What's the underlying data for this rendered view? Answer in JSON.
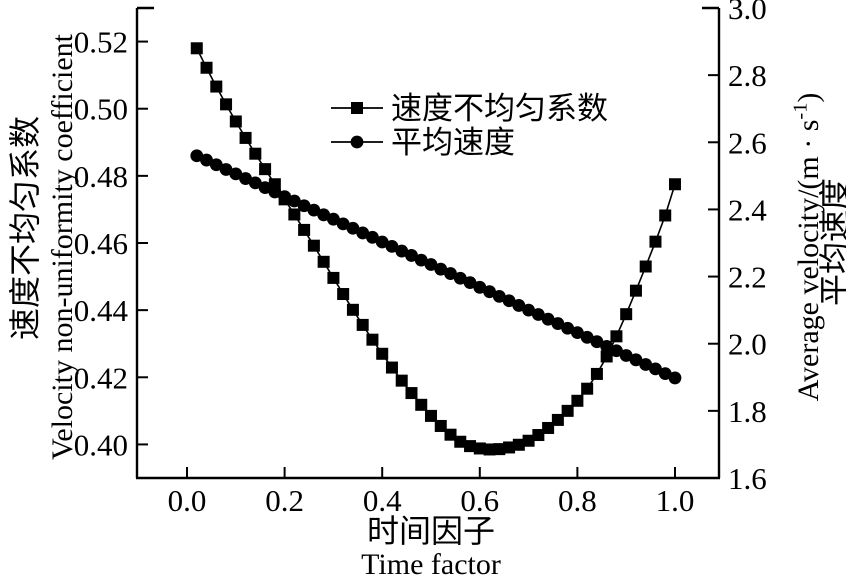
{
  "chart_data": {
    "type": "line",
    "title": "",
    "grid": false,
    "legend_position": "upper-center-inside",
    "colors": {
      "series": "#000000",
      "axis": "#000000",
      "background": "#ffffff"
    },
    "x_axis": {
      "label_zh": "时间因子",
      "label_en": "Time factor",
      "ticks": [
        0.0,
        0.2,
        0.4,
        0.6,
        0.8,
        1.0
      ],
      "tick_labels": [
        "0.0",
        "0.2",
        "0.4",
        "0.6",
        "0.8",
        "1.0"
      ],
      "range": [
        -0.1025,
        1.0902
      ]
    },
    "left_axis": {
      "label_zh": "速度不均匀系数",
      "label_en": "Velocity non-uniformity coefficient",
      "ticks": [
        0.4,
        0.42,
        0.44,
        0.46,
        0.48,
        0.5,
        0.52
      ],
      "tick_labels": [
        "0.40",
        "0.42",
        "0.44",
        "0.46",
        "0.48",
        "0.50",
        "0.52"
      ],
      "range": [
        0.39,
        0.53
      ]
    },
    "right_axis": {
      "label_en": "Average velocity/(m · s⁻¹)",
      "label_zh": "平均速度",
      "ticks": [
        1.6,
        1.8,
        2.0,
        2.2,
        2.4,
        2.6,
        2.8,
        3.0
      ],
      "tick_labels": [
        "1.6",
        "1.8",
        "2.0",
        "2.2",
        "2.4",
        "2.6",
        "2.8",
        "3.0"
      ],
      "range": [
        1.6,
        3.0
      ]
    },
    "legend": {
      "items": [
        {
          "label": "速度不均匀系数",
          "marker": "square"
        },
        {
          "label": "平均速度",
          "marker": "circle"
        }
      ]
    },
    "x": [
      0.02,
      0.04,
      0.06,
      0.08,
      0.1,
      0.12,
      0.14,
      0.16,
      0.18,
      0.2,
      0.22,
      0.24,
      0.26,
      0.28,
      0.3,
      0.32,
      0.34,
      0.36,
      0.38,
      0.4,
      0.42,
      0.44,
      0.46,
      0.48,
      0.5,
      0.52,
      0.54,
      0.56,
      0.58,
      0.6,
      0.62,
      0.64,
      0.66,
      0.68,
      0.7,
      0.72,
      0.74,
      0.76,
      0.78,
      0.8,
      0.82,
      0.84,
      0.86,
      0.88,
      0.9,
      0.92,
      0.94,
      0.96,
      0.98,
      1.0
    ],
    "series": [
      {
        "name": "速度不均匀系数",
        "axis": "left",
        "marker": "square",
        "values": [
          0.518,
          0.5122,
          0.5066,
          0.5013,
          0.4962,
          0.4913,
          0.4866,
          0.482,
          0.4775,
          0.473,
          0.4685,
          0.4639,
          0.4592,
          0.4544,
          0.4496,
          0.4448,
          0.4401,
          0.4356,
          0.4312,
          0.427,
          0.4229,
          0.419,
          0.4153,
          0.4118,
          0.4085,
          0.4055,
          0.4029,
          0.4008,
          0.3995,
          0.3988,
          0.3985,
          0.3986,
          0.3991,
          0.3999,
          0.4011,
          0.4028,
          0.4049,
          0.4073,
          0.41,
          0.413,
          0.4166,
          0.421,
          0.4262,
          0.4322,
          0.4388,
          0.4458,
          0.453,
          0.4604,
          0.4682,
          0.4775
        ]
      },
      {
        "name": "平均速度",
        "axis": "right",
        "marker": "circle",
        "values": [
          2.56,
          2.547,
          2.533,
          2.519,
          2.506,
          2.492,
          2.479,
          2.465,
          2.452,
          2.438,
          2.425,
          2.411,
          2.398,
          2.384,
          2.371,
          2.357,
          2.344,
          2.33,
          2.317,
          2.303,
          2.29,
          2.276,
          2.263,
          2.249,
          2.236,
          2.222,
          2.209,
          2.195,
          2.182,
          2.168,
          2.155,
          2.141,
          2.128,
          2.114,
          2.1,
          2.087,
          2.073,
          2.06,
          2.046,
          2.033,
          2.019,
          2.006,
          1.992,
          1.979,
          1.965,
          1.952,
          1.938,
          1.925,
          1.911,
          1.898
        ]
      }
    ]
  }
}
